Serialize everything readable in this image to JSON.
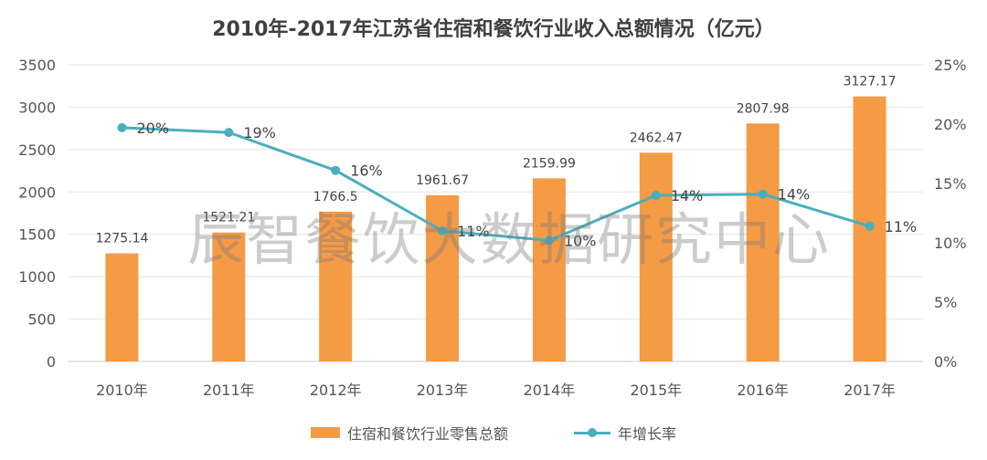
{
  "chart_data": {
    "type": "bar",
    "title": "2010年-2017年江苏省住宿和餐饮行业收入总额情况（亿元）",
    "categories": [
      "2010年",
      "2011年",
      "2012年",
      "2013年",
      "2014年",
      "2015年",
      "2016年",
      "2017年"
    ],
    "series": [
      {
        "name": "住宿和餐饮行业零售总额",
        "type": "bar",
        "axis": "left",
        "color": "#f59a45",
        "values": [
          1275.14,
          1521.21,
          1766.5,
          1961.67,
          2159.99,
          2462.47,
          2807.98,
          3127.17
        ],
        "labels": [
          "1275.14",
          "1521.21",
          "1766.5",
          "1961.67",
          "2159.99",
          "2462.47",
          "2807.98",
          "3127.17"
        ]
      },
      {
        "name": "年增长率",
        "type": "line",
        "axis": "right",
        "color": "#4aaebd",
        "values": [
          19.7,
          19.3,
          16.1,
          11.0,
          10.2,
          14.0,
          14.1,
          11.4
        ],
        "labels": [
          "20%",
          "19%",
          "16%",
          "11%",
          "10%",
          "14%",
          "14%",
          "11%"
        ]
      }
    ],
    "y_left": {
      "range": [
        0,
        3500
      ],
      "ticks": [
        "0",
        "500",
        "1000",
        "1500",
        "2000",
        "2500",
        "3000",
        "3500"
      ]
    },
    "y_right": {
      "range": [
        0,
        25
      ],
      "ticks": [
        "0%",
        "5%",
        "10%",
        "15%",
        "20%",
        "25%"
      ]
    },
    "grid": true,
    "legend": "bottom"
  },
  "watermark": "辰智餐饮大数据研究中心"
}
